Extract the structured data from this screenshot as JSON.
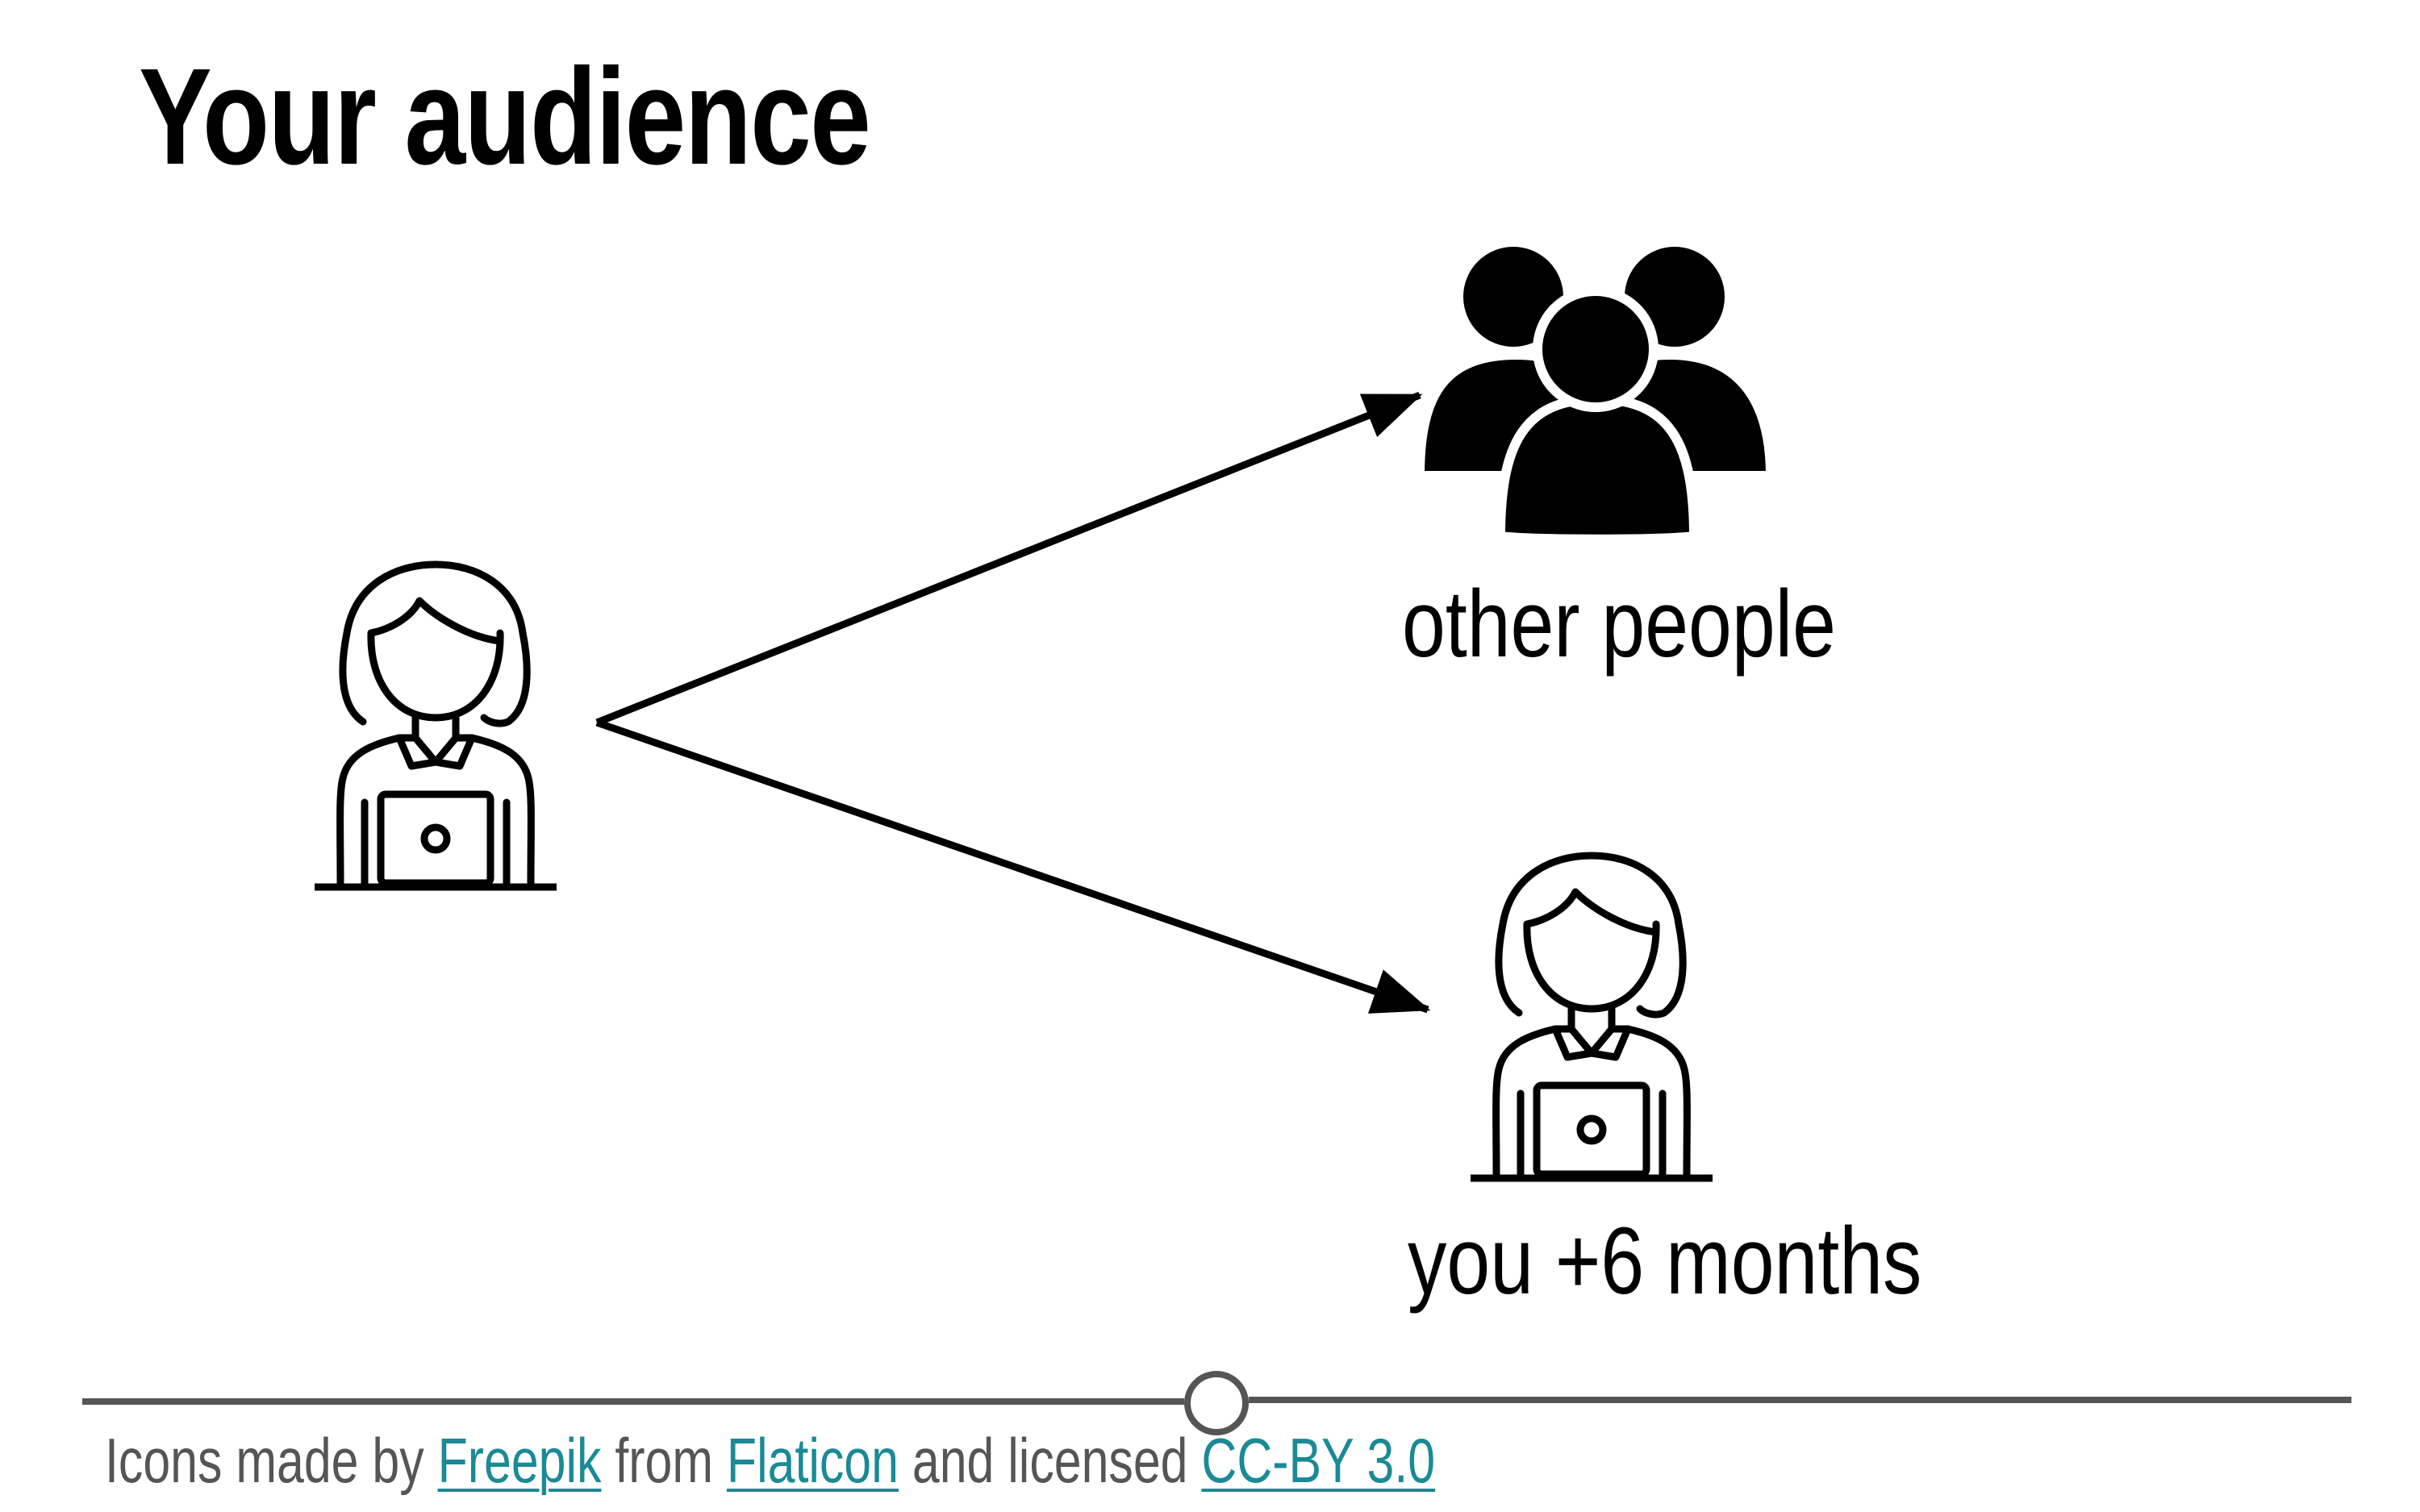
{
  "title": "Your audience",
  "nodes": {
    "you": {
      "icon": "woman-at-laptop-icon"
    },
    "other_people": {
      "icon": "people-group-icon",
      "label": "other people"
    },
    "future_you": {
      "icon": "woman-at-laptop-icon",
      "label": "you +6 months"
    }
  },
  "edges": [
    {
      "from": "you",
      "to": "other_people"
    },
    {
      "from": "you",
      "to": "future_you"
    }
  ],
  "footer": {
    "prefix": "Icons made by ",
    "author": "Freepik",
    "middle": " from ",
    "site": "Flaticon",
    "suffix": " and licensed ",
    "license": "CC-BY 3.0"
  },
  "colors": {
    "text": "#000000",
    "footer_text": "#555555",
    "link": "#1a8a96",
    "rule": "#555555"
  }
}
